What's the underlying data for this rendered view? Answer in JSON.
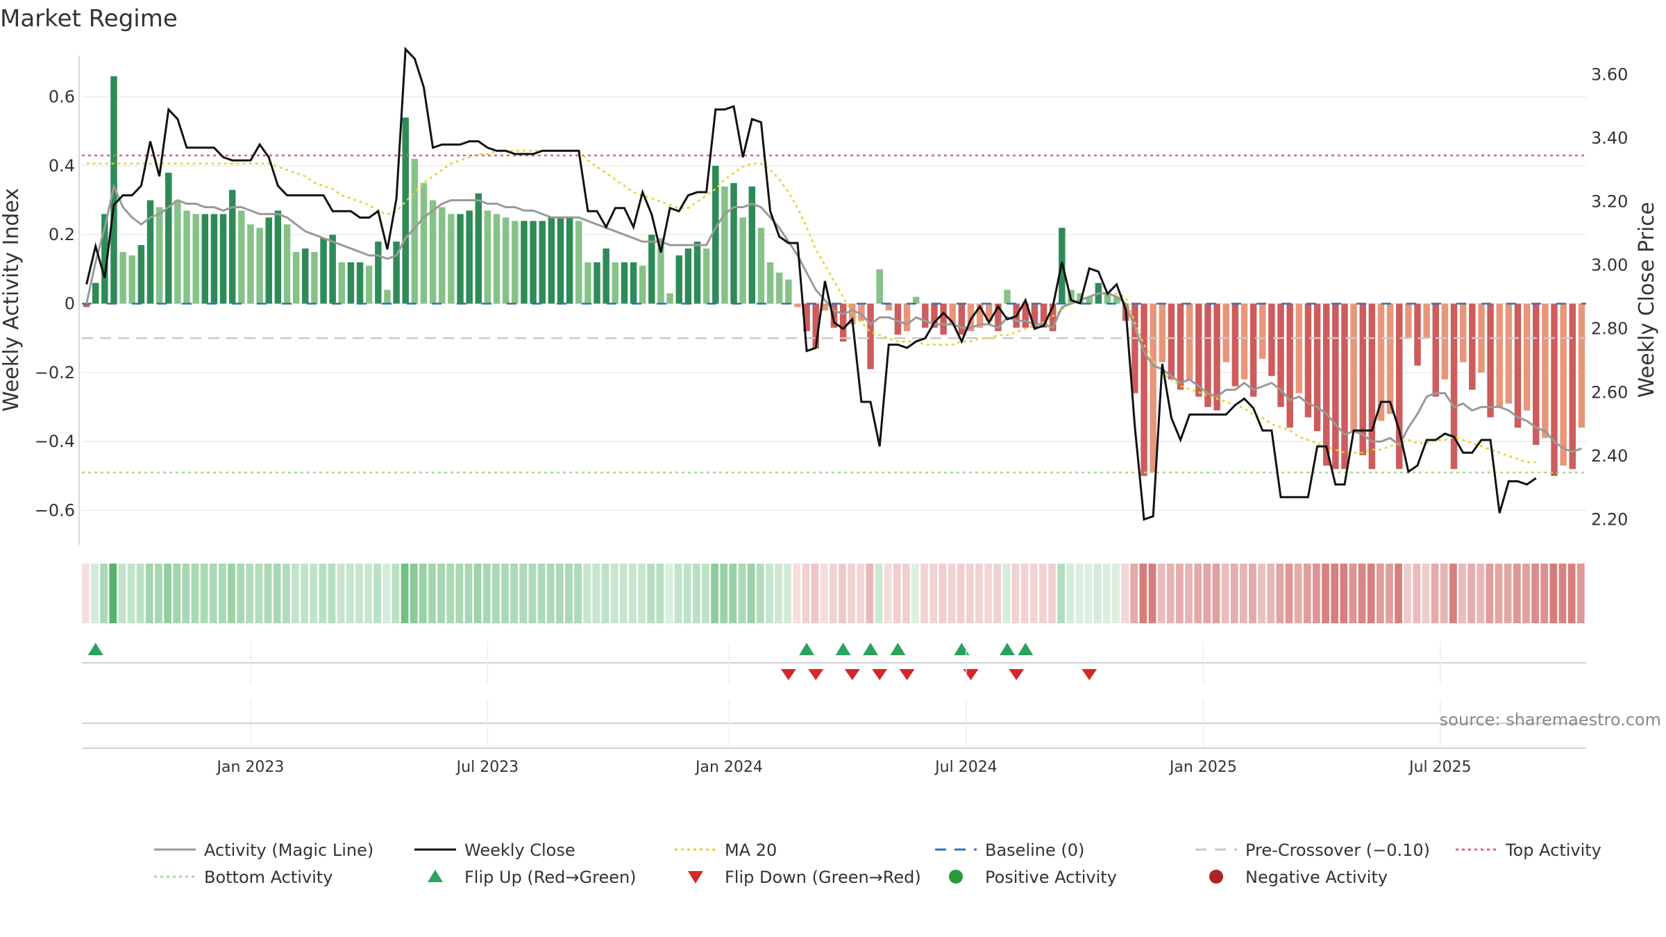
{
  "chart_data": {
    "type": "bar",
    "title": "Market Regime",
    "ylabel_left": "Weekly Activity Index",
    "ylabel_right": "Weekly Close Price",
    "source_text": "source: sharemaestro.com",
    "left_axis": {
      "ylim": [
        -0.7,
        0.72
      ],
      "ticks": [
        0.6,
        0.4,
        0.2,
        0,
        -0.2,
        -0.4,
        -0.6
      ],
      "tick_labels": [
        "0.6",
        "0.4",
        "0.2",
        "0",
        "−0.2",
        "−0.4",
        "−0.6"
      ]
    },
    "right_axis": {
      "ylim": [
        2.12,
        3.66
      ],
      "ticks": [
        3.6,
        3.4,
        3.2,
        3.0,
        2.8,
        2.6,
        2.4,
        2.2
      ],
      "tick_labels": [
        "3.60",
        "3.40",
        "3.20",
        "3.00",
        "2.80",
        "2.60",
        "2.40",
        "2.20"
      ]
    },
    "x_ticks": [
      {
        "label": "Jan 2023",
        "week": 18
      },
      {
        "label": "Jul 2023",
        "week": 44
      },
      {
        "label": "Jan 2024",
        "week": 70.5
      },
      {
        "label": "Jul 2024",
        "week": 96.5
      },
      {
        "label": "Jan 2025",
        "week": 122.5
      },
      {
        "label": "Jul 2025",
        "week": 148.5
      }
    ],
    "reference_lines": {
      "baseline": 0,
      "pre_crossover": -0.1,
      "top_activity": 0.43,
      "bottom_activity": -0.49
    },
    "activity": [
      -0.01,
      0.06,
      0.26,
      0.66,
      0.15,
      0.14,
      0.17,
      0.3,
      0.28,
      0.38,
      0.3,
      0.27,
      0.26,
      0.26,
      0.26,
      0.26,
      0.33,
      0.27,
      0.23,
      0.22,
      0.25,
      0.27,
      0.23,
      0.15,
      0.16,
      0.15,
      0.19,
      0.2,
      0.12,
      0.12,
      0.12,
      0.11,
      0.18,
      0.04,
      0.18,
      0.54,
      0.42,
      0.35,
      0.3,
      0.28,
      0.26,
      0.26,
      0.27,
      0.32,
      0.27,
      0.26,
      0.25,
      0.24,
      0.24,
      0.24,
      0.24,
      0.25,
      0.25,
      0.25,
      0.24,
      0.12,
      0.12,
      0.16,
      0.12,
      0.12,
      0.12,
      0.11,
      0.2,
      0.19,
      0.03,
      0.14,
      0.16,
      0.18,
      0.16,
      0.4,
      0.34,
      0.35,
      0.25,
      0.34,
      0.22,
      0.12,
      0.09,
      0.07,
      -0.01,
      -0.08,
      -0.13,
      -0.02,
      -0.07,
      -0.11,
      -0.06,
      -0.05,
      -0.19,
      0.1,
      -0.02,
      -0.09,
      -0.08,
      0.02,
      -0.07,
      -0.07,
      -0.09,
      -0.06,
      -0.09,
      -0.08,
      -0.07,
      -0.05,
      -0.08,
      0.04,
      -0.07,
      -0.07,
      -0.07,
      -0.07,
      -0.08,
      0.22,
      0.04,
      0.03,
      0.02,
      0.06,
      0.03,
      0.02,
      -0.05,
      -0.26,
      -0.5,
      -0.49,
      -0.17,
      -0.22,
      -0.25,
      -0.22,
      -0.27,
      -0.3,
      -0.31,
      -0.17,
      -0.24,
      -0.22,
      -0.27,
      -0.16,
      -0.21,
      -0.3,
      -0.36,
      -0.26,
      -0.33,
      -0.37,
      -0.47,
      -0.48,
      -0.48,
      -0.37,
      -0.44,
      -0.48,
      -0.34,
      -0.32,
      -0.48,
      -0.1,
      -0.18,
      -0.1,
      -0.27,
      -0.22,
      -0.48,
      -0.17,
      -0.25,
      -0.2,
      -0.33,
      -0.3,
      -0.29,
      -0.36,
      -0.31,
      -0.41,
      -0.39,
      -0.5,
      -0.47,
      -0.48,
      -0.36
    ],
    "magic_line": [
      0.0,
      0.12,
      0.22,
      0.34,
      0.28,
      0.25,
      0.23,
      0.25,
      0.26,
      0.28,
      0.3,
      0.29,
      0.29,
      0.28,
      0.28,
      0.27,
      0.28,
      0.28,
      0.27,
      0.26,
      0.26,
      0.26,
      0.25,
      0.23,
      0.21,
      0.2,
      0.19,
      0.18,
      0.17,
      0.16,
      0.15,
      0.14,
      0.14,
      0.13,
      0.14,
      0.19,
      0.22,
      0.25,
      0.27,
      0.29,
      0.3,
      0.3,
      0.3,
      0.3,
      0.29,
      0.29,
      0.28,
      0.28,
      0.27,
      0.27,
      0.26,
      0.25,
      0.25,
      0.25,
      0.25,
      0.24,
      0.23,
      0.22,
      0.21,
      0.2,
      0.19,
      0.18,
      0.18,
      0.18,
      0.17,
      0.17,
      0.17,
      0.17,
      0.17,
      0.22,
      0.26,
      0.28,
      0.28,
      0.29,
      0.28,
      0.25,
      0.22,
      0.18,
      0.14,
      0.09,
      0.04,
      0.01,
      -0.02,
      -0.03,
      -0.02,
      -0.03,
      -0.06,
      -0.04,
      -0.04,
      -0.05,
      -0.06,
      -0.04,
      -0.05,
      -0.06,
      -0.06,
      -0.06,
      -0.07,
      -0.07,
      -0.06,
      -0.06,
      -0.07,
      -0.04,
      -0.05,
      -0.05,
      -0.06,
      -0.06,
      -0.07,
      -0.01,
      0.0,
      0.01,
      0.02,
      0.03,
      0.03,
      0.02,
      0.0,
      -0.07,
      -0.14,
      -0.18,
      -0.19,
      -0.21,
      -0.23,
      -0.22,
      -0.24,
      -0.26,
      -0.27,
      -0.25,
      -0.25,
      -0.23,
      -0.25,
      -0.24,
      -0.23,
      -0.25,
      -0.28,
      -0.27,
      -0.29,
      -0.3,
      -0.32,
      -0.35,
      -0.38,
      -0.37,
      -0.38,
      -0.4,
      -0.4,
      -0.39,
      -0.41,
      -0.36,
      -0.32,
      -0.27,
      -0.26,
      -0.26,
      -0.3,
      -0.29,
      -0.31,
      -0.3,
      -0.3,
      -0.3,
      -0.31,
      -0.33,
      -0.34,
      -0.36,
      -0.37,
      -0.4,
      -0.42,
      -0.43,
      -0.42
    ],
    "weekly_close": [
      2.94,
      3.06,
      2.96,
      3.19,
      3.22,
      3.22,
      3.25,
      3.39,
      3.28,
      3.49,
      3.46,
      3.37,
      3.37,
      3.37,
      3.37,
      3.34,
      3.33,
      3.33,
      3.33,
      3.38,
      3.34,
      3.25,
      3.22,
      3.22,
      3.22,
      3.22,
      3.22,
      3.17,
      3.17,
      3.17,
      3.15,
      3.15,
      3.17,
      3.05,
      3.21,
      3.68,
      3.65,
      3.56,
      3.37,
      3.38,
      3.38,
      3.38,
      3.39,
      3.39,
      3.37,
      3.36,
      3.36,
      3.35,
      3.35,
      3.35,
      3.36,
      3.36,
      3.36,
      3.36,
      3.36,
      3.17,
      3.17,
      3.12,
      3.18,
      3.18,
      3.12,
      3.23,
      3.16,
      3.04,
      3.18,
      3.17,
      3.22,
      3.23,
      3.23,
      3.49,
      3.49,
      3.5,
      3.34,
      3.46,
      3.45,
      3.17,
      3.09,
      3.07,
      3.07,
      2.73,
      2.74,
      2.95,
      2.82,
      2.8,
      2.83,
      2.57,
      2.57,
      2.43,
      2.75,
      2.75,
      2.74,
      2.76,
      2.77,
      2.82,
      2.85,
      2.82,
      2.76,
      2.83,
      2.87,
      2.82,
      2.87,
      2.83,
      2.84,
      2.89,
      2.8,
      2.81,
      2.87,
      3.01,
      2.89,
      2.88,
      2.99,
      2.98,
      2.91,
      2.94,
      2.86,
      2.49,
      2.2,
      2.21,
      2.69,
      2.52,
      2.45,
      2.53,
      2.53,
      2.53,
      2.53,
      2.53,
      2.56,
      2.58,
      2.55,
      2.48,
      2.48,
      2.27,
      2.27,
      2.27,
      2.27,
      2.43,
      2.43,
      2.31,
      2.31,
      2.48,
      2.48,
      2.48,
      2.57,
      2.57,
      2.48,
      2.35,
      2.37,
      2.45,
      2.45,
      2.47,
      2.46,
      2.41,
      2.41,
      2.45,
      2.45,
      2.22,
      2.32,
      2.32,
      2.31,
      2.33
    ],
    "ma20": [
      3.32,
      3.32,
      3.32,
      3.32,
      3.32,
      3.32,
      3.32,
      3.32,
      3.32,
      3.32,
      3.32,
      3.32,
      3.32,
      3.32,
      3.32,
      3.32,
      3.32,
      3.32,
      3.32,
      3.32,
      3.32,
      3.31,
      3.3,
      3.29,
      3.28,
      3.26,
      3.25,
      3.24,
      3.22,
      3.21,
      3.2,
      3.19,
      3.17,
      3.16,
      3.17,
      3.2,
      3.23,
      3.26,
      3.28,
      3.3,
      3.32,
      3.33,
      3.34,
      3.35,
      3.35,
      3.36,
      3.36,
      3.36,
      3.36,
      3.36,
      3.36,
      3.36,
      3.36,
      3.36,
      3.36,
      3.33,
      3.31,
      3.29,
      3.27,
      3.25,
      3.23,
      3.22,
      3.21,
      3.2,
      3.19,
      3.18,
      3.18,
      3.2,
      3.22,
      3.24,
      3.27,
      3.29,
      3.31,
      3.32,
      3.32,
      3.3,
      3.27,
      3.23,
      3.18,
      3.12,
      3.05,
      3.0,
      2.95,
      2.9,
      2.85,
      2.82,
      2.79,
      2.78,
      2.77,
      2.76,
      2.76,
      2.76,
      2.75,
      2.75,
      2.75,
      2.75,
      2.76,
      2.76,
      2.77,
      2.77,
      2.78,
      2.78,
      2.79,
      2.8,
      2.81,
      2.82,
      2.84,
      2.86,
      2.88,
      2.89,
      2.9,
      2.91,
      2.91,
      2.91,
      2.9,
      2.82,
      2.75,
      2.7,
      2.66,
      2.64,
      2.62,
      2.61,
      2.6,
      2.59,
      2.58,
      2.57,
      2.56,
      2.55,
      2.53,
      2.52,
      2.5,
      2.49,
      2.48,
      2.46,
      2.45,
      2.44,
      2.43,
      2.42,
      2.41,
      2.41,
      2.41,
      2.42,
      2.42,
      2.43,
      2.44,
      2.45,
      2.44,
      2.44,
      2.45,
      2.45,
      2.46,
      2.45,
      2.44,
      2.43,
      2.42,
      2.41,
      2.4,
      2.39,
      2.38,
      2.38
    ],
    "flips_up": [
      1,
      79,
      83,
      86,
      89,
      96,
      101,
      103
    ],
    "flips_down": [
      77,
      80,
      84,
      87,
      90,
      97,
      102,
      110
    ],
    "legend": [
      {
        "label": "Activity (Magic Line)",
        "symbol": "line",
        "color": "#999999"
      },
      {
        "label": "Weekly Close",
        "symbol": "line",
        "color": "#111111"
      },
      {
        "label": "MA 20",
        "symbol": "dotted",
        "color": "#e6d22e"
      },
      {
        "label": "Baseline (0)",
        "symbol": "dashed",
        "color": "#2c73b8"
      },
      {
        "label": "Pre-Crossover (−0.10)",
        "symbol": "dashed",
        "color": "#c8c8c8"
      },
      {
        "label": "Top Activity",
        "symbol": "dotted",
        "color": "#e06080"
      },
      {
        "label": "Bottom Activity",
        "symbol": "dotted",
        "color": "#a8d890"
      },
      {
        "label": "Flip Up (Red→Green)",
        "symbol": "triangle-up",
        "color": "#2ca25f"
      },
      {
        "label": "Flip Down (Green→Red)",
        "symbol": "triangle-down",
        "color": "#d62728"
      },
      {
        "label": "Positive Activity",
        "symbol": "circle",
        "color": "#2a9a3a"
      },
      {
        "label": "Negative Activity",
        "symbol": "circle",
        "color": "#b22222"
      }
    ],
    "colors": {
      "pos_strong": "#2e8b57",
      "pos_weak": "#86c287",
      "neg_strong": "#cd5c5c",
      "neg_weak": "#e8967a",
      "strip_pos": "#4caf64",
      "strip_neg": "#c85050"
    }
  }
}
